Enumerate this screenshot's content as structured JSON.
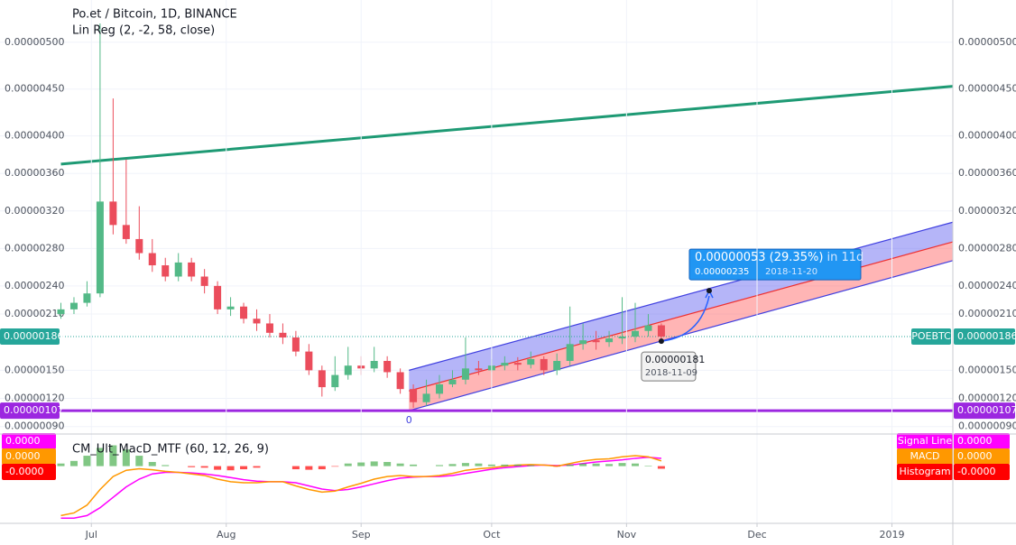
{
  "chart_data": [
    {
      "type": "candlestick",
      "title": "Po.et / Bitcoin, 1D, BINANCE",
      "subtitle": "Lin Reg (2, -2, 58, close)",
      "x": [
        "2018-06-24",
        "2018-06-27",
        "2018-06-30",
        "2018-07-03",
        "2018-07-06",
        "2018-07-09",
        "2018-07-12",
        "2018-07-15",
        "2018-07-18",
        "2018-07-21",
        "2018-07-24",
        "2018-07-27",
        "2018-07-30",
        "2018-08-02",
        "2018-08-05",
        "2018-08-08",
        "2018-08-11",
        "2018-08-14",
        "2018-08-17",
        "2018-08-20",
        "2018-08-23",
        "2018-08-26",
        "2018-08-29",
        "2018-09-01",
        "2018-09-04",
        "2018-09-07",
        "2018-09-10",
        "2018-09-13",
        "2018-09-16",
        "2018-09-19",
        "2018-09-22",
        "2018-09-25",
        "2018-09-28",
        "2018-10-01",
        "2018-10-04",
        "2018-10-07",
        "2018-10-10",
        "2018-10-13",
        "2018-10-16",
        "2018-10-19",
        "2018-10-22",
        "2018-10-25",
        "2018-10-28",
        "2018-10-31",
        "2018-11-03",
        "2018-11-06",
        "2018-11-09"
      ],
      "open": [
        2.1e-06,
        2.15e-06,
        2.22e-06,
        2.32e-06,
        3.3e-06,
        3.05e-06,
        2.9e-06,
        2.75e-06,
        2.62e-06,
        2.5e-06,
        2.65e-06,
        2.5e-06,
        2.4e-06,
        2.15e-06,
        2.18e-06,
        2.05e-06,
        2e-06,
        1.9e-06,
        1.85e-06,
        1.7e-06,
        1.5e-06,
        1.32e-06,
        1.45e-06,
        1.55e-06,
        1.52e-06,
        1.6e-06,
        1.48e-06,
        1.3e-06,
        1.16e-06,
        1.25e-06,
        1.35e-06,
        1.4e-06,
        1.52e-06,
        1.5e-06,
        1.55e-06,
        1.58e-06,
        1.56e-06,
        1.62e-06,
        1.5e-06,
        1.6e-06,
        1.78e-06,
        1.82e-06,
        1.8e-06,
        1.84e-06,
        1.86e-06,
        1.92e-06,
        1.98e-06
      ],
      "high": [
        2.22e-06,
        2.28e-06,
        2.45e-06,
        5.2e-06,
        4.4e-06,
        3.75e-06,
        3.25e-06,
        2.9e-06,
        2.7e-06,
        2.75e-06,
        2.7e-06,
        2.58e-06,
        2.45e-06,
        2.28e-06,
        2.22e-06,
        2.15e-06,
        2.1e-06,
        2e-06,
        1.92e-06,
        1.78e-06,
        1.55e-06,
        1.65e-06,
        1.75e-06,
        1.65e-06,
        1.75e-06,
        1.65e-06,
        1.52e-06,
        1.35e-06,
        1.4e-06,
        1.45e-06,
        1.5e-06,
        1.85e-06,
        1.6e-06,
        1.62e-06,
        1.65e-06,
        1.64e-06,
        1.7e-06,
        1.65e-06,
        1.68e-06,
        2.18e-06,
        2e-06,
        1.92e-06,
        1.92e-06,
        2.28e-06,
        2.22e-06,
        2.1e-06,
        2e-06
      ],
      "low": [
        2.05e-06,
        2.1e-06,
        2.18e-06,
        2.28e-06,
        2.95e-06,
        2.85e-06,
        2.68e-06,
        2.55e-06,
        2.45e-06,
        2.45e-06,
        2.45e-06,
        2.32e-06,
        2.1e-06,
        2.08e-06,
        2e-06,
        1.92e-06,
        1.85e-06,
        1.78e-06,
        1.65e-06,
        1.45e-06,
        1.22e-06,
        1.28e-06,
        1.4e-06,
        1.45e-06,
        1.48e-06,
        1.42e-06,
        1.25e-06,
        1.1e-06,
        1.12e-06,
        1.2e-06,
        1.32e-06,
        1.35e-06,
        1.45e-06,
        1.48e-06,
        1.5e-06,
        1.5e-06,
        1.52e-06,
        1.45e-06,
        1.45e-06,
        1.55e-06,
        1.72e-06,
        1.72e-06,
        1.75e-06,
        1.78e-06,
        1.8e-06,
        1.86e-06,
        1.8e-06
      ],
      "close": [
        2.15e-06,
        2.22e-06,
        2.32e-06,
        3.3e-06,
        3.05e-06,
        2.9e-06,
        2.75e-06,
        2.62e-06,
        2.5e-06,
        2.65e-06,
        2.5e-06,
        2.4e-06,
        2.15e-06,
        2.18e-06,
        2.05e-06,
        2e-06,
        1.9e-06,
        1.85e-06,
        1.7e-06,
        1.5e-06,
        1.32e-06,
        1.45e-06,
        1.55e-06,
        1.52e-06,
        1.6e-06,
        1.48e-06,
        1.3e-06,
        1.16e-06,
        1.25e-06,
        1.35e-06,
        1.4e-06,
        1.52e-06,
        1.5e-06,
        1.55e-06,
        1.58e-06,
        1.56e-06,
        1.62e-06,
        1.5e-06,
        1.6e-06,
        1.78e-06,
        1.82e-06,
        1.8e-06,
        1.84e-06,
        1.86e-06,
        1.92e-06,
        1.98e-06,
        1.86e-06
      ],
      "up_color": "#53b987",
      "down_color": "#eb4d5c",
      "xlim": [
        "2018-06-10",
        "2019-01-15"
      ],
      "ylim": [
        8.3e-07,
        5.45e-06
      ],
      "yticks": [
        {
          "value": 5e-06,
          "label": "0.00000500"
        },
        {
          "value": 4.5e-06,
          "label": "0.00000450"
        },
        {
          "value": 4e-06,
          "label": "0.00000400"
        },
        {
          "value": 3.6e-06,
          "label": "0.00000360"
        },
        {
          "value": 3.2e-06,
          "label": "0.00000320"
        },
        {
          "value": 2.8e-06,
          "label": "0.00000280"
        },
        {
          "value": 2.4e-06,
          "label": "0.00000240"
        },
        {
          "value": 2.1e-06,
          "label": "0.00000210"
        },
        {
          "value": 1.5e-06,
          "label": "0.00000150"
        },
        {
          "value": 1.2e-06,
          "label": "0.00000120"
        },
        {
          "value": 9e-07,
          "label": "0.00000090"
        }
      ],
      "grid": true,
      "last_price": {
        "value": 1.86e-06,
        "label": "0.00000186",
        "symbol": "POEBTC",
        "color": "#26a69a"
      },
      "level_line": {
        "value": 1.07e-06,
        "label": "0.00000107",
        "color": "#9c27e0"
      },
      "trend_line": {
        "x": [
          "2018-06-24",
          "2019-01-15"
        ],
        "values": [
          3.7e-06,
          4.53e-06
        ],
        "color": "#1e9a74"
      },
      "lin_reg": {
        "x": [
          "2018-09-12",
          "2019-01-15"
        ],
        "upper": [
          1.5e-06,
          3.08e-06
        ],
        "middle": [
          1.28e-06,
          2.87e-06
        ],
        "lower": [
          1.07e-06,
          2.67e-06
        ],
        "start_label": "0"
      },
      "projection": {
        "from": {
          "x": "2018-11-09",
          "value": 1.81e-06,
          "label": "0.00000181",
          "date_label": "2018-11-09"
        },
        "to": {
          "x": "2018-11-20",
          "value": 2.35e-06,
          "label": "0.00000235",
          "date_label": "2018-11-20"
        },
        "change_label": "0.00000053 (29.35%)",
        "span_label": "in 11d"
      }
    },
    {
      "type": "line",
      "title": "CM_Ult_MacD_MTF (60, 12, 26, 9)",
      "x": [
        "2018-06-24",
        "2018-06-27",
        "2018-06-30",
        "2018-07-03",
        "2018-07-06",
        "2018-07-09",
        "2018-07-12",
        "2018-07-15",
        "2018-07-18",
        "2018-07-21",
        "2018-07-24",
        "2018-07-27",
        "2018-07-30",
        "2018-08-02",
        "2018-08-05",
        "2018-08-08",
        "2018-08-11",
        "2018-08-14",
        "2018-08-17",
        "2018-08-20",
        "2018-08-23",
        "2018-08-26",
        "2018-08-29",
        "2018-09-01",
        "2018-09-04",
        "2018-09-07",
        "2018-09-10",
        "2018-09-13",
        "2018-09-16",
        "2018-09-19",
        "2018-09-22",
        "2018-09-25",
        "2018-09-28",
        "2018-10-01",
        "2018-10-04",
        "2018-10-07",
        "2018-10-10",
        "2018-10-13",
        "2018-10-16",
        "2018-10-19",
        "2018-10-22",
        "2018-10-25",
        "2018-10-28",
        "2018-10-31",
        "2018-11-03",
        "2018-11-06",
        "2018-11-09"
      ],
      "xlim": [
        "2018-06-10",
        "2019-01-15"
      ],
      "ylim": [
        -1.1,
        0.6
      ],
      "xticks": [
        {
          "value": "2018-07-01",
          "label": "Jul"
        },
        {
          "value": "2018-08-01",
          "label": "Aug"
        },
        {
          "value": "2018-09-01",
          "label": "Sep"
        },
        {
          "value": "2018-10-01",
          "label": "Oct"
        },
        {
          "value": "2018-11-01",
          "label": "Nov"
        },
        {
          "value": "2018-12-01",
          "label": "Dec"
        },
        {
          "value": "2019-01-01",
          "label": "2019"
        }
      ],
      "series": [
        {
          "name": "Signal Line",
          "color": "#ff00ff",
          "last_label": "0.0000",
          "values": [
            -1,
            -1,
            -0.95,
            -0.8,
            -0.6,
            -0.4,
            -0.25,
            -0.15,
            -0.12,
            -0.12,
            -0.13,
            -0.15,
            -0.18,
            -0.22,
            -0.26,
            -0.29,
            -0.3,
            -0.3,
            -0.32,
            -0.38,
            -0.44,
            -0.47,
            -0.45,
            -0.4,
            -0.34,
            -0.28,
            -0.23,
            -0.21,
            -0.2,
            -0.2,
            -0.18,
            -0.14,
            -0.1,
            -0.06,
            -0.03,
            -0.01,
            0.01,
            0.02,
            0.01,
            0.02,
            0.05,
            0.08,
            0.1,
            0.12,
            0.15,
            0.17,
            0.15
          ]
        },
        {
          "name": "MACD",
          "color": "#ff9800",
          "last_label": "0.0000",
          "values": [
            -0.95,
            -0.9,
            -0.75,
            -0.45,
            -0.2,
            -0.08,
            -0.05,
            -0.07,
            -0.1,
            -0.12,
            -0.15,
            -0.18,
            -0.25,
            -0.3,
            -0.32,
            -0.32,
            -0.3,
            -0.3,
            -0.38,
            -0.45,
            -0.5,
            -0.48,
            -0.4,
            -0.33,
            -0.25,
            -0.2,
            -0.18,
            -0.2,
            -0.2,
            -0.18,
            -0.14,
            -0.08,
            -0.05,
            -0.03,
            0,
            0.02,
            0.03,
            0.02,
            0,
            0.05,
            0.1,
            0.13,
            0.14,
            0.18,
            0.2,
            0.18,
            0.1
          ]
        },
        {
          "name": "Histogram",
          "color": "#ff0000",
          "positive_color": "#4caf50",
          "last_label": "-0.0000",
          "values": [
            0.05,
            0.1,
            0.2,
            0.35,
            0.4,
            0.32,
            0.2,
            0.08,
            0.02,
            0,
            -0.02,
            -0.03,
            -0.07,
            -0.08,
            -0.06,
            -0.03,
            0,
            0,
            -0.06,
            -0.07,
            -0.06,
            -0.01,
            0.05,
            0.07,
            0.09,
            0.08,
            0.05,
            0.03,
            0,
            0.02,
            0.04,
            0.06,
            0.05,
            0.03,
            0.03,
            0.03,
            0.02,
            0,
            -0.01,
            0.03,
            0.05,
            0.05,
            0.04,
            0.06,
            0.05,
            0.01,
            -0.05
          ]
        }
      ]
    }
  ]
}
